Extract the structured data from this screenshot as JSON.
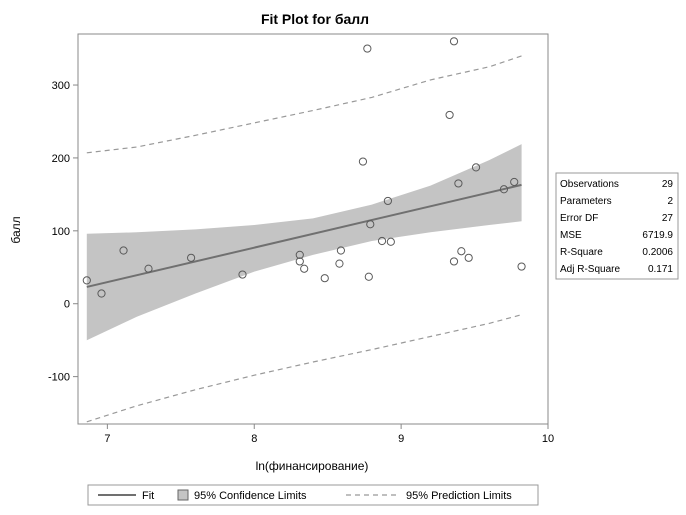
{
  "chart_data": {
    "type": "scatter",
    "title": "Fit Plot for балл",
    "xlabel": "ln(финансирование)",
    "ylabel": "балл",
    "xlim": [
      6.8,
      10.0
    ],
    "ylim": [
      -165,
      370
    ],
    "xticks": [
      7,
      8,
      9,
      10
    ],
    "yticks": [
      -100,
      0,
      100,
      200,
      300
    ],
    "x_tick_labels": [
      "7",
      "8",
      "9",
      "10"
    ],
    "y_tick_labels": [
      "-100",
      "0",
      "100",
      "200",
      "300"
    ],
    "grid": false,
    "points": [
      {
        "x": 6.86,
        "y": 32
      },
      {
        "x": 6.96,
        "y": 14
      },
      {
        "x": 7.11,
        "y": 73
      },
      {
        "x": 7.28,
        "y": 48
      },
      {
        "x": 7.57,
        "y": 63
      },
      {
        "x": 7.92,
        "y": 40
      },
      {
        "x": 8.31,
        "y": 67
      },
      {
        "x": 8.31,
        "y": 58
      },
      {
        "x": 8.34,
        "y": 48
      },
      {
        "x": 8.48,
        "y": 35
      },
      {
        "x": 8.58,
        "y": 55
      },
      {
        "x": 8.59,
        "y": 73
      },
      {
        "x": 8.74,
        "y": 195
      },
      {
        "x": 8.77,
        "y": 350
      },
      {
        "x": 8.78,
        "y": 37
      },
      {
        "x": 8.79,
        "y": 109
      },
      {
        "x": 8.87,
        "y": 86
      },
      {
        "x": 8.91,
        "y": 141
      },
      {
        "x": 8.93,
        "y": 85
      },
      {
        "x": 9.33,
        "y": 259
      },
      {
        "x": 9.36,
        "y": 360
      },
      {
        "x": 9.36,
        "y": 58
      },
      {
        "x": 9.39,
        "y": 165
      },
      {
        "x": 9.41,
        "y": 72
      },
      {
        "x": 9.46,
        "y": 63
      },
      {
        "x": 9.51,
        "y": 187
      },
      {
        "x": 9.7,
        "y": 157
      },
      {
        "x": 9.77,
        "y": 167
      },
      {
        "x": 9.82,
        "y": 51
      }
    ],
    "fit": {
      "x": [
        6.86,
        9.82
      ],
      "y": [
        23,
        163
      ]
    },
    "confidence_limits": {
      "x": [
        6.86,
        7.2,
        7.6,
        8.0,
        8.4,
        8.8,
        9.2,
        9.6,
        9.82
      ],
      "lower": [
        -50,
        -18,
        14,
        44,
        67,
        86,
        98,
        108,
        113
      ],
      "upper": [
        96,
        98,
        102,
        108,
        117,
        136,
        162,
        197,
        219
      ]
    },
    "prediction_limits": {
      "x": [
        6.86,
        7.2,
        7.6,
        8.0,
        8.4,
        8.8,
        9.2,
        9.6,
        9.82
      ],
      "lower": [
        -162,
        -140,
        -118,
        -98,
        -80,
        -63,
        -45,
        -27,
        -15
      ],
      "upper": [
        207,
        215,
        231,
        248,
        265,
        283,
        307,
        325,
        340
      ]
    },
    "colors": {
      "fit_line": "#707070",
      "confidence_band": "#c4c4c4",
      "prediction_line": "#999999",
      "marker_stroke": "#5a5a5a",
      "frame": "#888888"
    },
    "stats_table": [
      {
        "label": "Observations",
        "value": "29"
      },
      {
        "label": "Parameters",
        "value": "2"
      },
      {
        "label": "Error DF",
        "value": "27"
      },
      {
        "label": "MSE",
        "value": "6719.9"
      },
      {
        "label": "R-Square",
        "value": "0.2006"
      },
      {
        "label": "Adj R-Square",
        "value": "0.171"
      }
    ],
    "legend": {
      "position": "bottom",
      "items": [
        {
          "label": "Fit",
          "kind": "line"
        },
        {
          "label": "95% Confidence Limits",
          "kind": "band"
        },
        {
          "label": "95% Prediction Limits",
          "kind": "dashed"
        }
      ]
    }
  }
}
